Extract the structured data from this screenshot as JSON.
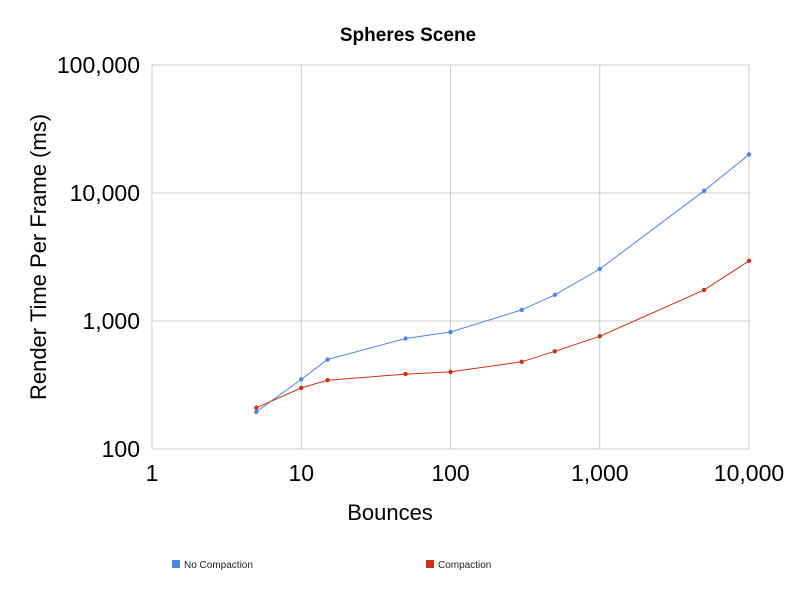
{
  "chart_data": {
    "type": "line",
    "title": "Spheres Scene",
    "xlabel": "Bounces",
    "ylabel": "Render Time Per Frame (ms)",
    "x_scale": "log",
    "y_scale": "log",
    "xlim": [
      1,
      10000
    ],
    "ylim": [
      100,
      100000
    ],
    "x_ticks": [
      1,
      10,
      100,
      1000,
      10000
    ],
    "x_tick_labels": [
      "1",
      "10",
      "100",
      "1,000",
      "10,000"
    ],
    "y_ticks": [
      100,
      1000,
      10000,
      100000
    ],
    "y_tick_labels": [
      "100",
      "1,000",
      "10,000",
      "100,000"
    ],
    "grid": true,
    "legend_position": "bottom",
    "x": [
      5,
      10,
      15,
      50,
      100,
      300,
      500,
      1000,
      5000,
      10000
    ],
    "series": [
      {
        "name": "No Compaction",
        "color": "#4a86e8",
        "values": [
          195,
          350,
          500,
          730,
          820,
          1220,
          1600,
          2550,
          10400,
          20000
        ]
      },
      {
        "name": "Compaction",
        "color": "#cc3311",
        "values": [
          210,
          300,
          345,
          385,
          400,
          480,
          580,
          760,
          1750,
          2950
        ]
      }
    ]
  }
}
